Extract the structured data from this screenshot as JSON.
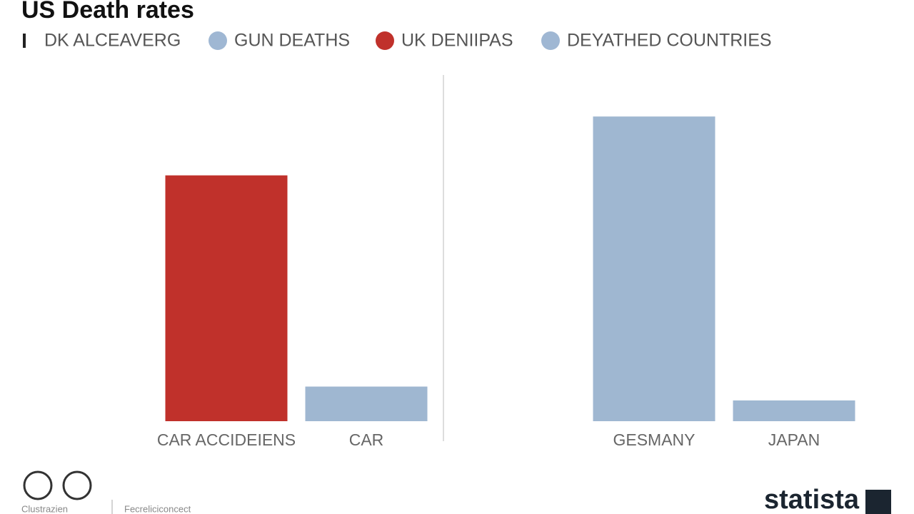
{
  "chart_data": {
    "type": "bar",
    "title": "US Death rates",
    "legend": [
      {
        "name": "DK ALCEAVERG",
        "color": "#222222"
      },
      {
        "name": "GUN DEATHS",
        "color": "#9fb7d3"
      },
      {
        "name": "UK DENIIPAS",
        "color": "#c0312b"
      },
      {
        "name": "DEYATHED COUNTRIES",
        "color": "#9fb7d3"
      }
    ],
    "categories": [
      "CAR ACCIDEIENS",
      "CAR",
      "GESMANY",
      "JAPAN"
    ],
    "values": [
      71,
      10,
      88,
      6
    ],
    "colors": [
      "#c0312b",
      "#9fb7d1",
      "#9fb7d1",
      "#9fb7d1"
    ],
    "ylim": [
      0,
      100
    ]
  },
  "footer": {
    "source": "Clustrazien",
    "note": "Fecreliciconcect",
    "brand": "statista"
  }
}
